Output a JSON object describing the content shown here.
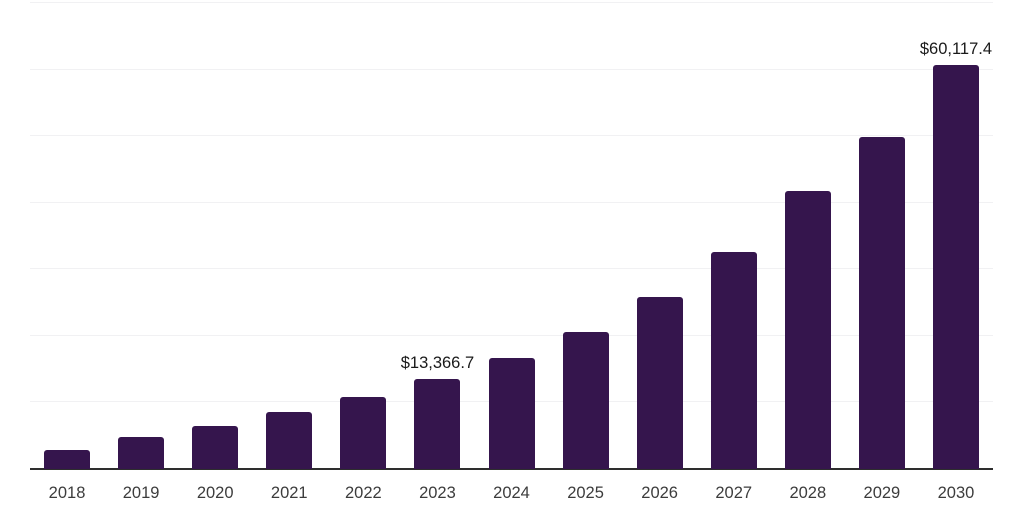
{
  "chart_data": {
    "type": "bar",
    "title": "",
    "xlabel": "",
    "ylabel": "",
    "categories": [
      "2018",
      "2019",
      "2020",
      "2021",
      "2022",
      "2023",
      "2024",
      "2025",
      "2026",
      "2027",
      "2028",
      "2029",
      "2030"
    ],
    "values": [
      2800,
      4700,
      6350,
      8450,
      10700,
      13366.7,
      16500,
      20400,
      25500,
      32200,
      41300,
      49400,
      60117.4
    ],
    "labeled_points": [
      {
        "category": "2023",
        "label": "$13,366.7"
      },
      {
        "category": "2030",
        "label": "$60,117.4"
      }
    ],
    "ylim": [
      0,
      65000
    ],
    "grid": "horizontal",
    "gridline_count": 7,
    "legend": "none"
  },
  "colors": {
    "bar": "#35154d",
    "gridline": "#f1f1f3",
    "axis": "#2e2e2e",
    "data_label": "#1a1a1a",
    "tick_label": "#3c3c3c",
    "background": "#ffffff"
  }
}
